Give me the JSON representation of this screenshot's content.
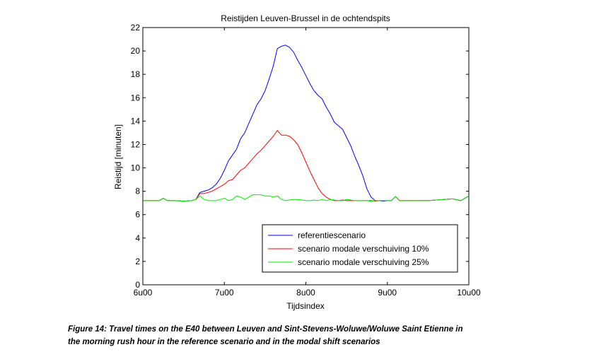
{
  "chart_data": {
    "type": "line",
    "title": "Reistijden Leuven-Brussel in de ochtendspits",
    "xlabel": "Tijdsindex",
    "ylabel": "Reistijd [minuten]",
    "xlim": [
      6,
      10
    ],
    "ylim": [
      0,
      22
    ],
    "xticks": [
      {
        "value": 6,
        "label": "6u00"
      },
      {
        "value": 7,
        "label": "7u00"
      },
      {
        "value": 8,
        "label": "8u00"
      },
      {
        "value": 9,
        "label": "9u00"
      },
      {
        "value": 10,
        "label": "10u00"
      }
    ],
    "yticks": [
      0,
      2,
      4,
      6,
      8,
      10,
      12,
      14,
      16,
      18,
      20,
      22
    ],
    "grid": false,
    "legend": "bottom-right",
    "series": [
      {
        "name": "referentiescenario",
        "color": "#0000ff",
        "x": [
          6.0,
          6.1,
          6.2,
          6.25,
          6.3,
          6.4,
          6.5,
          6.6,
          6.65,
          6.7,
          6.75,
          6.8,
          6.85,
          6.9,
          6.95,
          7.0,
          7.05,
          7.1,
          7.15,
          7.2,
          7.25,
          7.3,
          7.35,
          7.4,
          7.45,
          7.5,
          7.55,
          7.6,
          7.65,
          7.7,
          7.75,
          7.8,
          7.85,
          7.9,
          7.95,
          8.0,
          8.05,
          8.1,
          8.15,
          8.2,
          8.25,
          8.3,
          8.35,
          8.4,
          8.45,
          8.5,
          8.55,
          8.6,
          8.65,
          8.7,
          8.75,
          8.8,
          8.85,
          8.9,
          8.95,
          9.0,
          9.05,
          9.1,
          9.15,
          9.2,
          9.25,
          9.3,
          9.4,
          9.5,
          9.6,
          9.7,
          9.8,
          9.9,
          10.0
        ],
        "y": [
          7.2,
          7.2,
          7.2,
          7.4,
          7.2,
          7.2,
          7.15,
          7.2,
          7.3,
          7.9,
          8.0,
          8.1,
          8.3,
          8.6,
          9.1,
          9.8,
          10.6,
          11.1,
          11.6,
          12.5,
          13.0,
          13.8,
          14.6,
          15.4,
          15.9,
          16.6,
          17.6,
          18.7,
          20.2,
          20.4,
          20.5,
          20.3,
          19.9,
          19.2,
          18.6,
          17.9,
          17.2,
          16.6,
          16.2,
          15.9,
          15.2,
          14.6,
          13.9,
          13.6,
          13.3,
          12.6,
          11.9,
          11.0,
          10.2,
          9.3,
          8.2,
          7.5,
          7.2,
          7.2,
          7.15,
          7.2,
          7.2,
          7.55,
          7.2,
          7.2,
          7.2,
          7.2,
          7.2,
          7.2,
          7.25,
          7.3,
          7.35,
          7.2,
          7.6
        ]
      },
      {
        "name": "scenario modale verschuiving 10%",
        "color": "#ff0000",
        "x": [
          6.0,
          6.1,
          6.2,
          6.25,
          6.3,
          6.4,
          6.5,
          6.6,
          6.65,
          6.7,
          6.75,
          6.8,
          6.85,
          6.9,
          6.95,
          7.0,
          7.05,
          7.1,
          7.15,
          7.2,
          7.25,
          7.3,
          7.35,
          7.4,
          7.45,
          7.5,
          7.55,
          7.6,
          7.65,
          7.7,
          7.75,
          7.8,
          7.85,
          7.9,
          7.95,
          8.0,
          8.05,
          8.1,
          8.15,
          8.2,
          8.25,
          8.3,
          8.35,
          8.4,
          8.45,
          8.5,
          8.55,
          8.6,
          8.65,
          8.7,
          8.75,
          8.8,
          8.85,
          8.9,
          8.95,
          9.0,
          9.05,
          9.1,
          9.15,
          9.2,
          9.25,
          9.3,
          9.4,
          9.5,
          9.6,
          9.7,
          9.8,
          9.9,
          10.0
        ],
        "y": [
          7.2,
          7.2,
          7.2,
          7.4,
          7.2,
          7.2,
          7.15,
          7.2,
          7.3,
          7.8,
          7.8,
          7.9,
          8.0,
          8.2,
          8.4,
          8.6,
          8.9,
          9.0,
          9.4,
          9.8,
          10.0,
          10.4,
          10.8,
          11.2,
          11.5,
          11.9,
          12.3,
          12.7,
          13.2,
          12.8,
          12.8,
          12.7,
          12.4,
          12.0,
          11.3,
          10.5,
          9.7,
          9.0,
          8.3,
          7.8,
          7.5,
          7.3,
          7.2,
          7.2,
          7.25,
          7.2,
          7.2,
          7.2,
          7.2,
          7.2,
          7.2,
          7.2,
          7.15,
          7.2,
          7.2,
          7.2,
          7.2,
          7.55,
          7.2,
          7.2,
          7.2,
          7.2,
          7.2,
          7.2,
          7.25,
          7.3,
          7.35,
          7.2,
          7.6
        ]
      },
      {
        "name": "scenario modale verschuiving 25%",
        "color": "#00ee00",
        "x": [
          6.0,
          6.1,
          6.2,
          6.25,
          6.3,
          6.4,
          6.5,
          6.6,
          6.65,
          6.7,
          6.75,
          6.8,
          6.85,
          6.9,
          6.95,
          7.0,
          7.05,
          7.1,
          7.15,
          7.2,
          7.25,
          7.3,
          7.35,
          7.4,
          7.45,
          7.5,
          7.55,
          7.6,
          7.65,
          7.7,
          7.75,
          7.8,
          7.85,
          7.9,
          7.95,
          8.0,
          8.05,
          8.1,
          8.15,
          8.2,
          8.25,
          8.3,
          8.35,
          8.4,
          8.45,
          8.5,
          8.55,
          8.6,
          8.65,
          8.7,
          8.75,
          8.8,
          8.85,
          8.9,
          8.95,
          9.0,
          9.05,
          9.1,
          9.15,
          9.2,
          9.25,
          9.3,
          9.4,
          9.5,
          9.6,
          9.7,
          9.8,
          9.9,
          10.0
        ],
        "y": [
          7.2,
          7.2,
          7.2,
          7.4,
          7.2,
          7.2,
          7.15,
          7.2,
          7.3,
          7.6,
          7.3,
          7.2,
          7.2,
          7.2,
          7.3,
          7.4,
          7.2,
          7.3,
          7.6,
          7.5,
          7.3,
          7.5,
          7.7,
          7.7,
          7.7,
          7.6,
          7.6,
          7.5,
          7.6,
          7.3,
          7.2,
          7.25,
          7.3,
          7.3,
          7.25,
          7.2,
          7.2,
          7.25,
          7.2,
          7.3,
          7.2,
          7.3,
          7.25,
          7.2,
          7.2,
          7.3,
          7.25,
          7.2,
          7.2,
          7.2,
          7.2,
          7.15,
          7.2,
          7.2,
          7.2,
          7.2,
          7.2,
          7.55,
          7.2,
          7.2,
          7.2,
          7.2,
          7.2,
          7.2,
          7.25,
          7.3,
          7.35,
          7.2,
          7.6
        ]
      }
    ]
  },
  "caption": {
    "line1": "Figure 14: Travel times on the E40 between Leuven and Sint-Stevens-Woluwe/Woluwe Saint Etienne in",
    "line2": "the morning rush hour in the reference scenario and in the modal shift scenarios"
  }
}
